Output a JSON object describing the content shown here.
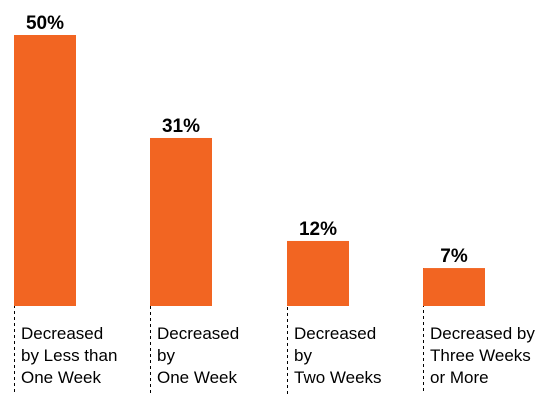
{
  "chart_data": {
    "type": "bar",
    "title": "",
    "xlabel": "",
    "ylabel": "",
    "categories": [
      [
        "Decreased",
        "by Less than",
        "One Week"
      ],
      [
        "Decreased",
        "by",
        "One Week"
      ],
      [
        "Decreased",
        "by",
        "Two Weeks"
      ],
      [
        "Decreased by",
        "Three Weeks",
        "or More"
      ]
    ],
    "values": [
      50,
      31,
      12,
      7
    ],
    "value_labels": [
      "50%",
      "31%",
      "12%",
      "7%"
    ],
    "unit": "%",
    "ylim": [
      0,
      50
    ],
    "grid": false,
    "legend": "none",
    "bar_color": "#F26522"
  }
}
